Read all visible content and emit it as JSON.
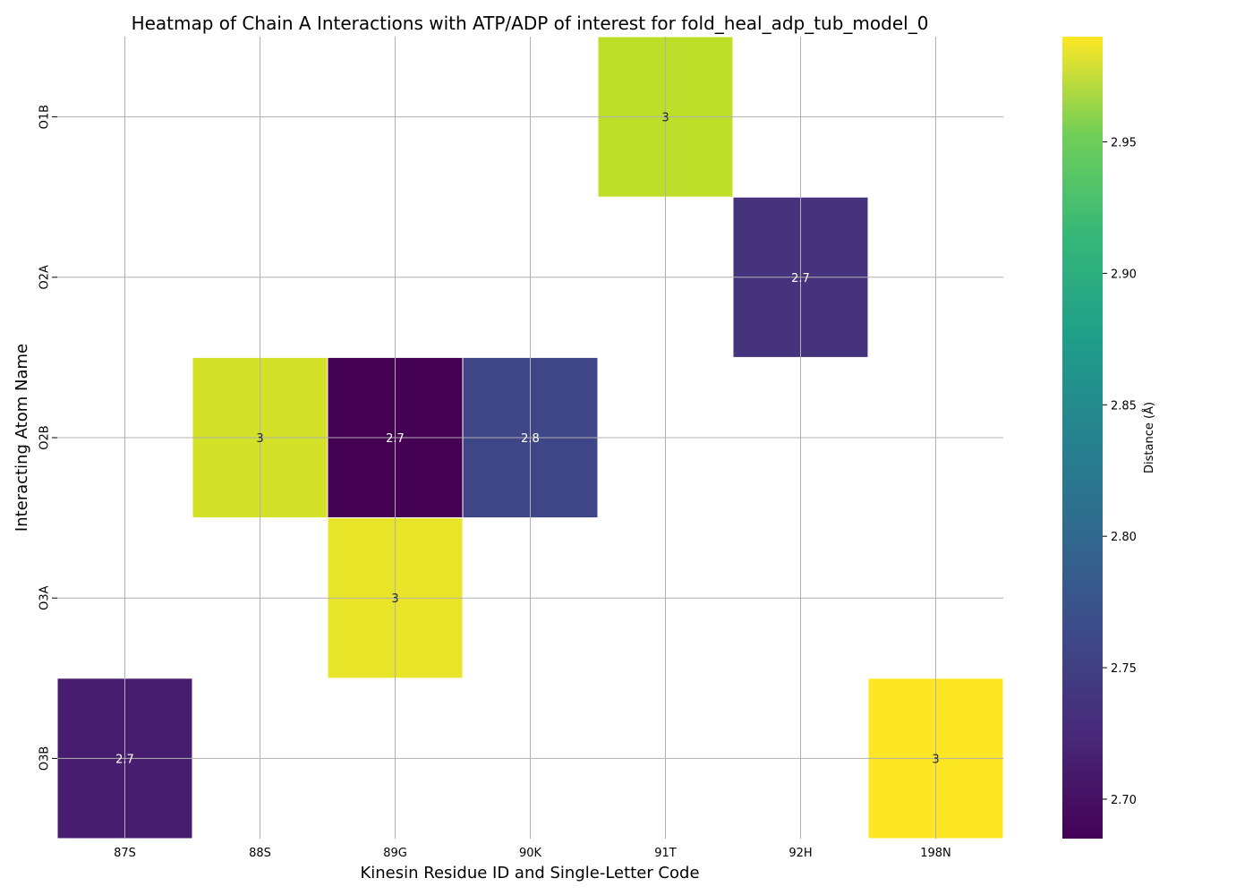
{
  "chart_data": {
    "type": "heatmap",
    "title": "Heatmap of Chain A Interactions with ATP/ADP of interest for fold_heal_adp_tub_model_0",
    "xlabel": "Kinesin Residue ID and Single-Letter Code",
    "ylabel": "Interacting Atom Name",
    "x_categories": [
      "87S",
      "88S",
      "89G",
      "90K",
      "91T",
      "92H",
      "198N"
    ],
    "y_categories": [
      "O1B",
      "O2A",
      "O2B",
      "O3A",
      "O3B"
    ],
    "cells": [
      {
        "x": "91T",
        "y": "O1B",
        "value": 2.96,
        "label": "3"
      },
      {
        "x": "92H",
        "y": "O2A",
        "value": 2.73,
        "label": "2.7"
      },
      {
        "x": "88S",
        "y": "O2B",
        "value": 2.97,
        "label": "3"
      },
      {
        "x": "89G",
        "y": "O2B",
        "value": 2.685,
        "label": "2.7"
      },
      {
        "x": "90K",
        "y": "O2B",
        "value": 2.75,
        "label": "2.8"
      },
      {
        "x": "89G",
        "y": "O3A",
        "value": 2.98,
        "label": "3"
      },
      {
        "x": "87S",
        "y": "O3B",
        "value": 2.71,
        "label": "2.7"
      },
      {
        "x": "198N",
        "y": "O3B",
        "value": 2.99,
        "label": "3"
      }
    ],
    "colorbar": {
      "label": "Distance (Å)",
      "range": [
        2.685,
        2.99
      ],
      "ticks": [
        2.7,
        2.75,
        2.8,
        2.85,
        2.9,
        2.95
      ],
      "tick_labels": [
        "2.70",
        "2.75",
        "2.80",
        "2.85",
        "2.90",
        "2.95"
      ],
      "colormap": "viridis"
    },
    "grid": true
  }
}
